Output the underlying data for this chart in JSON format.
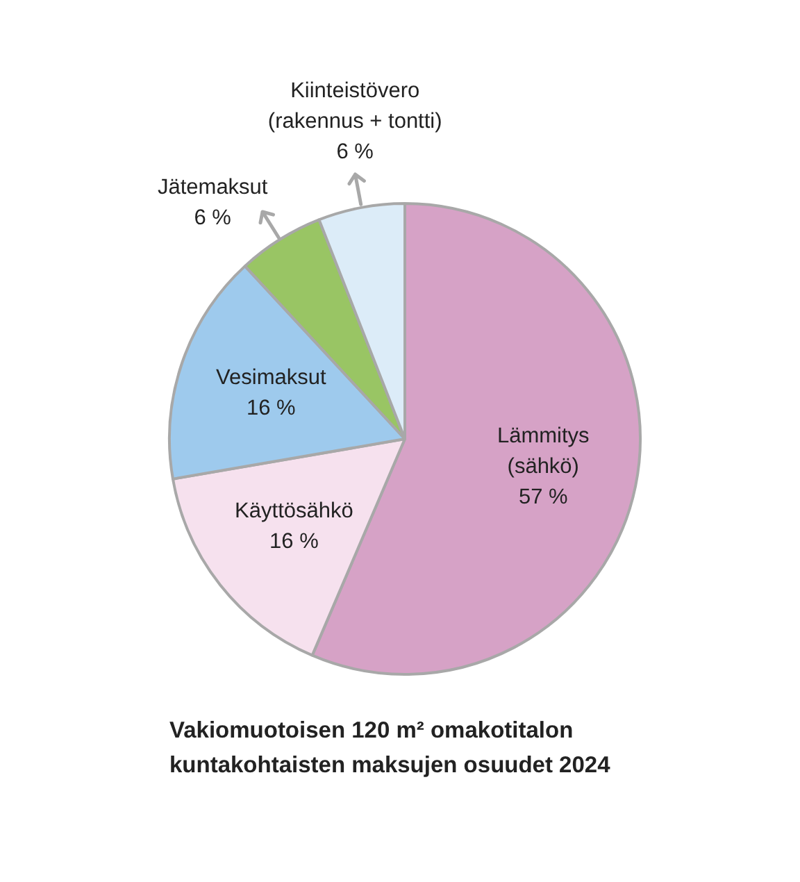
{
  "chart_data": {
    "type": "pie",
    "title": "Vakiomuotoisen 120 m² omakotitalon kuntakohtaisten maksujen osuudet 2024",
    "categories": [
      "Lämmitys (sähkö)",
      "Käyttösähkö",
      "Vesimaksut",
      "Jätemaksut",
      "Kiinteistövero (rakennus + tontti)"
    ],
    "values": [
      57,
      16,
      16,
      6,
      6
    ],
    "colors": [
      "#d6a2c6",
      "#f6e1ee",
      "#9ecaed",
      "#99c564",
      "#dcecf8"
    ],
    "value_labels": [
      "57 %",
      "16 %",
      "16 %",
      "6 %",
      "6 %"
    ]
  }
}
